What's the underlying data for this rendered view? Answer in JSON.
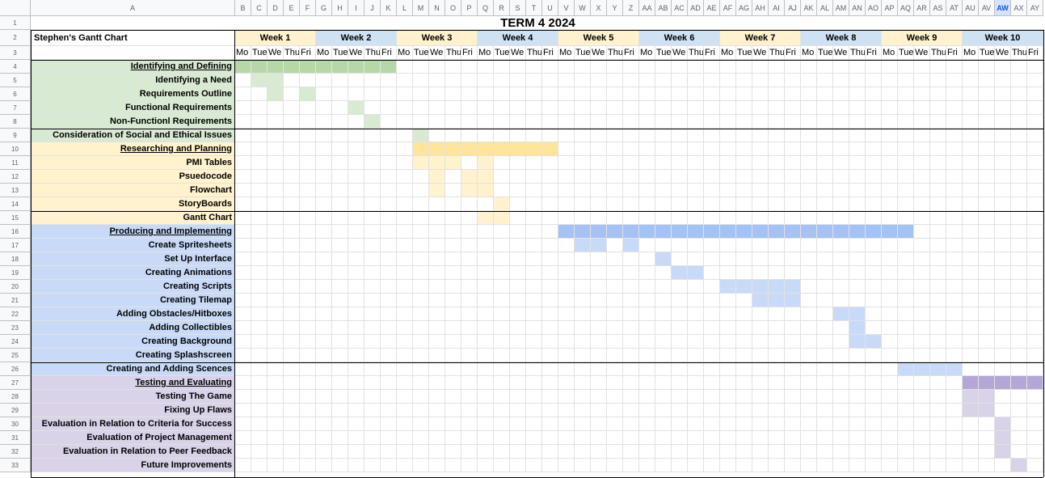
{
  "sheet": {
    "title": "TERM 4 2024",
    "chart_label": "Stephen's Gantt Chart",
    "columns": [
      "A",
      "B",
      "C",
      "D",
      "E",
      "F",
      "G",
      "H",
      "I",
      "J",
      "K",
      "L",
      "M",
      "N",
      "O",
      "P",
      "Q",
      "R",
      "S",
      "T",
      "U",
      "V",
      "W",
      "X",
      "Y",
      "Z",
      "AA",
      "AB",
      "AC",
      "AD",
      "AE",
      "AF",
      "AG",
      "AH",
      "AI",
      "AJ",
      "AK",
      "AL",
      "AM",
      "AN",
      "AO",
      "AP",
      "AQ",
      "AR",
      "AS",
      "AT",
      "AU",
      "AV",
      "AW",
      "AX",
      "AY"
    ],
    "selected_column": "AW",
    "rows": [
      "1",
      "2",
      "3",
      "4",
      "5",
      "6",
      "7",
      "8",
      "9",
      "10",
      "11",
      "12",
      "13",
      "14",
      "15",
      "16",
      "17",
      "18",
      "19",
      "20",
      "21",
      "22",
      "23",
      "24",
      "25",
      "26",
      "27",
      "28",
      "29",
      "30",
      "31",
      "32",
      "33"
    ],
    "weeks": [
      "Week 1",
      "Week 2",
      "Week 3",
      "Week 4",
      "Week 5",
      "Week 6",
      "Week 7",
      "Week 8",
      "Week 9",
      "Week 10"
    ],
    "days": [
      "Mo",
      "Tue",
      "We",
      "Thu",
      "Fri"
    ],
    "colors": {
      "green_label": "#d9ead3",
      "green_bar": "#b6d7a8",
      "green_cell": "#d9ead3",
      "yellow_label": "#fff2cc",
      "yellow_bar": "#ffe599",
      "yellow_cell": "#fff2cc",
      "blue_label": "#c9daf8",
      "blue_bar": "#a4c2f4",
      "blue_cell": "#c9daf8",
      "purple_label": "#d9d2e9",
      "purple_bar": "#b4a7d6",
      "purple_cell": "#d9d2e9",
      "week_odd": "#fff2cc",
      "week_even": "#cfe2f3"
    },
    "tasks": [
      {
        "label": "Identifying and Defining",
        "section": true,
        "group": "green",
        "fills": [
          [
            0,
            10
          ]
        ]
      },
      {
        "label": "Identifying a Need",
        "group": "green",
        "fills": [
          [
            1,
            2
          ]
        ]
      },
      {
        "label": "Requirements Outline",
        "group": "green",
        "fills": [
          [
            2,
            1
          ],
          [
            4,
            1
          ]
        ]
      },
      {
        "label": "Functional Requirements",
        "group": "green",
        "fills": [
          [
            7,
            1
          ]
        ]
      },
      {
        "label": "Non-Functionl Requirements",
        "group": "green",
        "fills": [
          [
            8,
            1
          ]
        ]
      },
      {
        "label": "Consideration of Social and Ethical Issues",
        "group": "green",
        "fills": [
          [
            11,
            1
          ]
        ]
      },
      {
        "label": "Researching and Planning",
        "section": true,
        "group": "yellow",
        "fills": [
          [
            11,
            9
          ]
        ]
      },
      {
        "label": "PMI Tables",
        "group": "yellow",
        "fills": [
          [
            11,
            3
          ],
          [
            15,
            1
          ]
        ]
      },
      {
        "label": "Psuedocode",
        "group": "yellow",
        "fills": [
          [
            12,
            1
          ],
          [
            14,
            2
          ]
        ]
      },
      {
        "label": "Flowchart",
        "group": "yellow",
        "fills": [
          [
            12,
            1
          ],
          [
            14,
            1
          ],
          [
            15,
            1
          ]
        ]
      },
      {
        "label": "StoryBoards",
        "group": "yellow",
        "fills": [
          [
            16,
            1
          ]
        ]
      },
      {
        "label": "Gantt Chart",
        "group": "yellow",
        "fills": [
          [
            15,
            2
          ]
        ]
      },
      {
        "label": "Producing and Implementing",
        "section": true,
        "group": "blue",
        "fills": [
          [
            20,
            22
          ]
        ]
      },
      {
        "label": "Create Spritesheets",
        "group": "blue",
        "fills": [
          [
            21,
            2
          ],
          [
            24,
            1
          ]
        ]
      },
      {
        "label": "Set Up Interface",
        "group": "blue",
        "fills": [
          [
            26,
            1
          ]
        ]
      },
      {
        "label": "Creating Animations",
        "group": "blue",
        "fills": [
          [
            27,
            2
          ]
        ]
      },
      {
        "label": "Creating Scripts",
        "group": "blue",
        "fills": [
          [
            30,
            5
          ]
        ]
      },
      {
        "label": "Creating Tilemap",
        "group": "blue",
        "fills": [
          [
            32,
            3
          ]
        ]
      },
      {
        "label": "Adding Obstacles/Hitboxes",
        "group": "blue",
        "fills": [
          [
            37,
            2
          ]
        ]
      },
      {
        "label": "Adding Collectibles",
        "group": "blue",
        "fills": [
          [
            38,
            1
          ]
        ]
      },
      {
        "label": "Creating Background",
        "group": "blue",
        "fills": [
          [
            38,
            2
          ]
        ]
      },
      {
        "label": "Creating Splashscreen",
        "group": "blue",
        "fills": []
      },
      {
        "label": "Creating and Adding Scences",
        "group": "blue",
        "fills": [
          [
            41,
            4
          ]
        ]
      },
      {
        "label": "Testing and Evaluating",
        "section": true,
        "group": "purple",
        "fills": [
          [
            45,
            5
          ]
        ]
      },
      {
        "label": "Testing The Game",
        "group": "purple",
        "fills": [
          [
            45,
            2
          ]
        ]
      },
      {
        "label": "Fixing Up Flaws",
        "group": "purple",
        "fills": [
          [
            45,
            2
          ]
        ]
      },
      {
        "label": "Evaluation in Relation to Criteria for Success",
        "group": "purple",
        "fills": [
          [
            47,
            1
          ]
        ]
      },
      {
        "label": "Evaluation of Project Management",
        "group": "purple",
        "fills": [
          [
            47,
            1
          ]
        ]
      },
      {
        "label": "Evaluation in Relation to Peer Feedback",
        "group": "purple",
        "fills": [
          [
            47,
            1
          ]
        ]
      },
      {
        "label": "Future Improvements",
        "group": "purple",
        "fills": [
          [
            48,
            1
          ]
        ]
      }
    ]
  }
}
